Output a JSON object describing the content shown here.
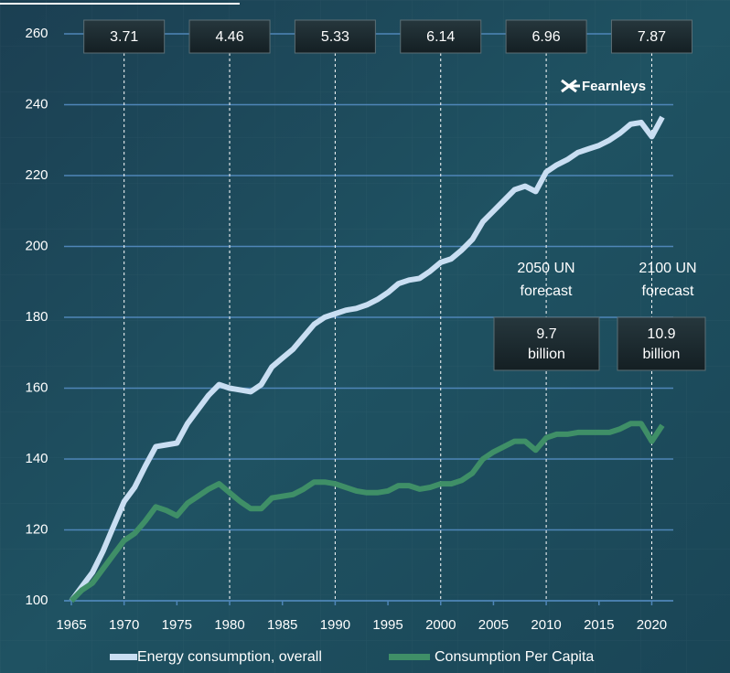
{
  "chart_data": {
    "type": "line",
    "logo": "Fearnleys",
    "x": [
      1965,
      1966,
      1967,
      1968,
      1969,
      1970,
      1971,
      1972,
      1973,
      1974,
      1975,
      1976,
      1977,
      1978,
      1979,
      1980,
      1981,
      1982,
      1983,
      1984,
      1985,
      1986,
      1987,
      1988,
      1989,
      1990,
      1991,
      1992,
      1993,
      1994,
      1995,
      1996,
      1997,
      1998,
      1999,
      2000,
      2001,
      2002,
      2003,
      2004,
      2005,
      2006,
      2007,
      2008,
      2009,
      2010,
      2011,
      2012,
      2013,
      2014,
      2015,
      2016,
      2017,
      2018,
      2019,
      2020,
      2021
    ],
    "series": [
      {
        "name": "Energy consumption, overall",
        "color": "#c9def2",
        "values": [
          100,
          104,
          108,
          114,
          121,
          128,
          132,
          138,
          143.5,
          144,
          144.5,
          150,
          154,
          158,
          161,
          160,
          159.5,
          159,
          161,
          166,
          168.5,
          171,
          174.5,
          178,
          180,
          181,
          182,
          182.5,
          183.5,
          185,
          187,
          189.5,
          190.5,
          191,
          193,
          195.5,
          196.5,
          199,
          202,
          207,
          210,
          213,
          216,
          217,
          215.5,
          221,
          223,
          224.5,
          226.5,
          227.5,
          228.5,
          230,
          232,
          234.5,
          235,
          231,
          236.5
        ]
      },
      {
        "name": "Consumption Per Capita",
        "color": "#3f8f67",
        "values": [
          100,
          103,
          105,
          109,
          113,
          117,
          119,
          122.5,
          126.5,
          125.5,
          124,
          127.5,
          129.5,
          131.5,
          133,
          130.5,
          128,
          126,
          126,
          129,
          129.5,
          130,
          131.5,
          133.5,
          133.5,
          133,
          132,
          131,
          130.5,
          130.5,
          131,
          132.5,
          132.5,
          131.5,
          132,
          133,
          133,
          134,
          136,
          140,
          142,
          143.5,
          145,
          145,
          142.5,
          146,
          147,
          147,
          147.5,
          147.5,
          147.5,
          147.5,
          148.5,
          150,
          150,
          145,
          149.5
        ]
      }
    ],
    "xlim": [
      1965,
      2021
    ],
    "xticks": [
      1965,
      1970,
      1975,
      1980,
      1985,
      1990,
      1995,
      2000,
      2005,
      2010,
      2015,
      2020
    ],
    "ylim": [
      100,
      260
    ],
    "yticks": [
      100,
      120,
      140,
      160,
      180,
      200,
      220,
      240,
      260
    ],
    "grid": true,
    "legend": "bottom",
    "population_markers": [
      {
        "x": 1970,
        "value": 3.71
      },
      {
        "x": 1980,
        "value": 4.46
      },
      {
        "x": 1990,
        "value": 5.33
      },
      {
        "x": 2000,
        "value": 6.14
      },
      {
        "x": 2010,
        "value": 6.96
      },
      {
        "x": 2020,
        "value": 7.87
      }
    ],
    "forecasts": [
      {
        "label": [
          "2050 UN",
          "forecast"
        ],
        "value_label": [
          "9.7",
          "billion"
        ]
      },
      {
        "label": [
          "2100 UN",
          "forecast"
        ],
        "value_label": [
          "10.9",
          "billion"
        ]
      }
    ]
  }
}
